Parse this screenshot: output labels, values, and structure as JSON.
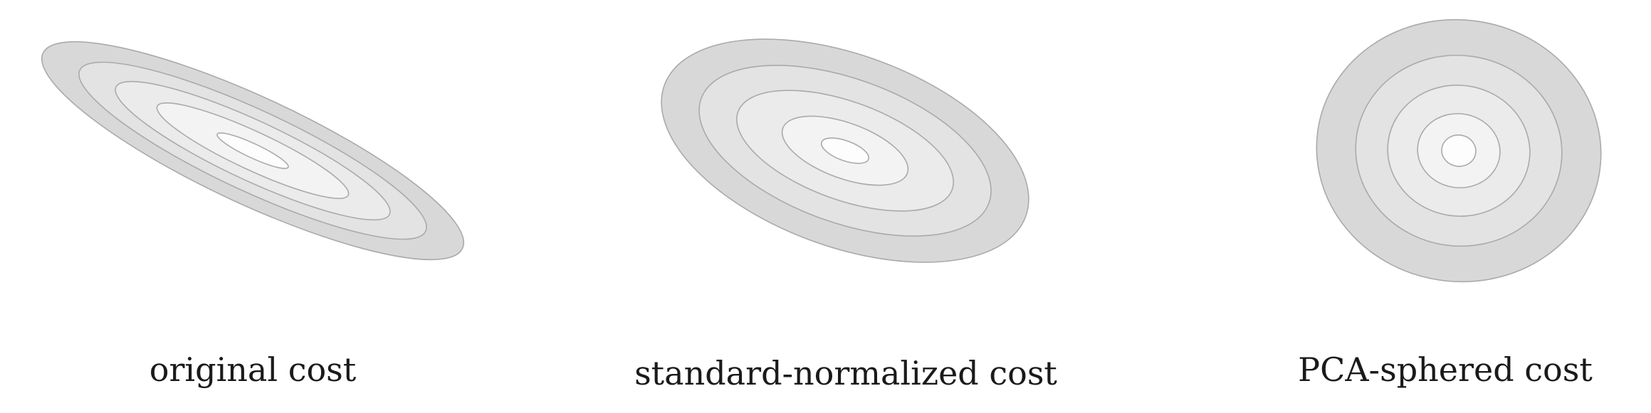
{
  "panels": [
    {
      "caption": "original cost",
      "contour_levels": 5,
      "shape": "narrow elongated ellipse tilted downward to the right"
    },
    {
      "caption": "standard-normalized cost",
      "contour_levels": 5,
      "shape": "moderately elongated ellipse tilted downward to the right"
    },
    {
      "caption": "PCA-sphered cost",
      "contour_levels": 5,
      "shape": "nearly circular concentric contours"
    }
  ],
  "colors": {
    "fills": [
      "#d8d8d8",
      "#e3e3e3",
      "#ebebeb",
      "#f3f3f3",
      "#fdfdfd"
    ],
    "stroke": "#aaaaaa",
    "caption": "#1a1a1a"
  }
}
